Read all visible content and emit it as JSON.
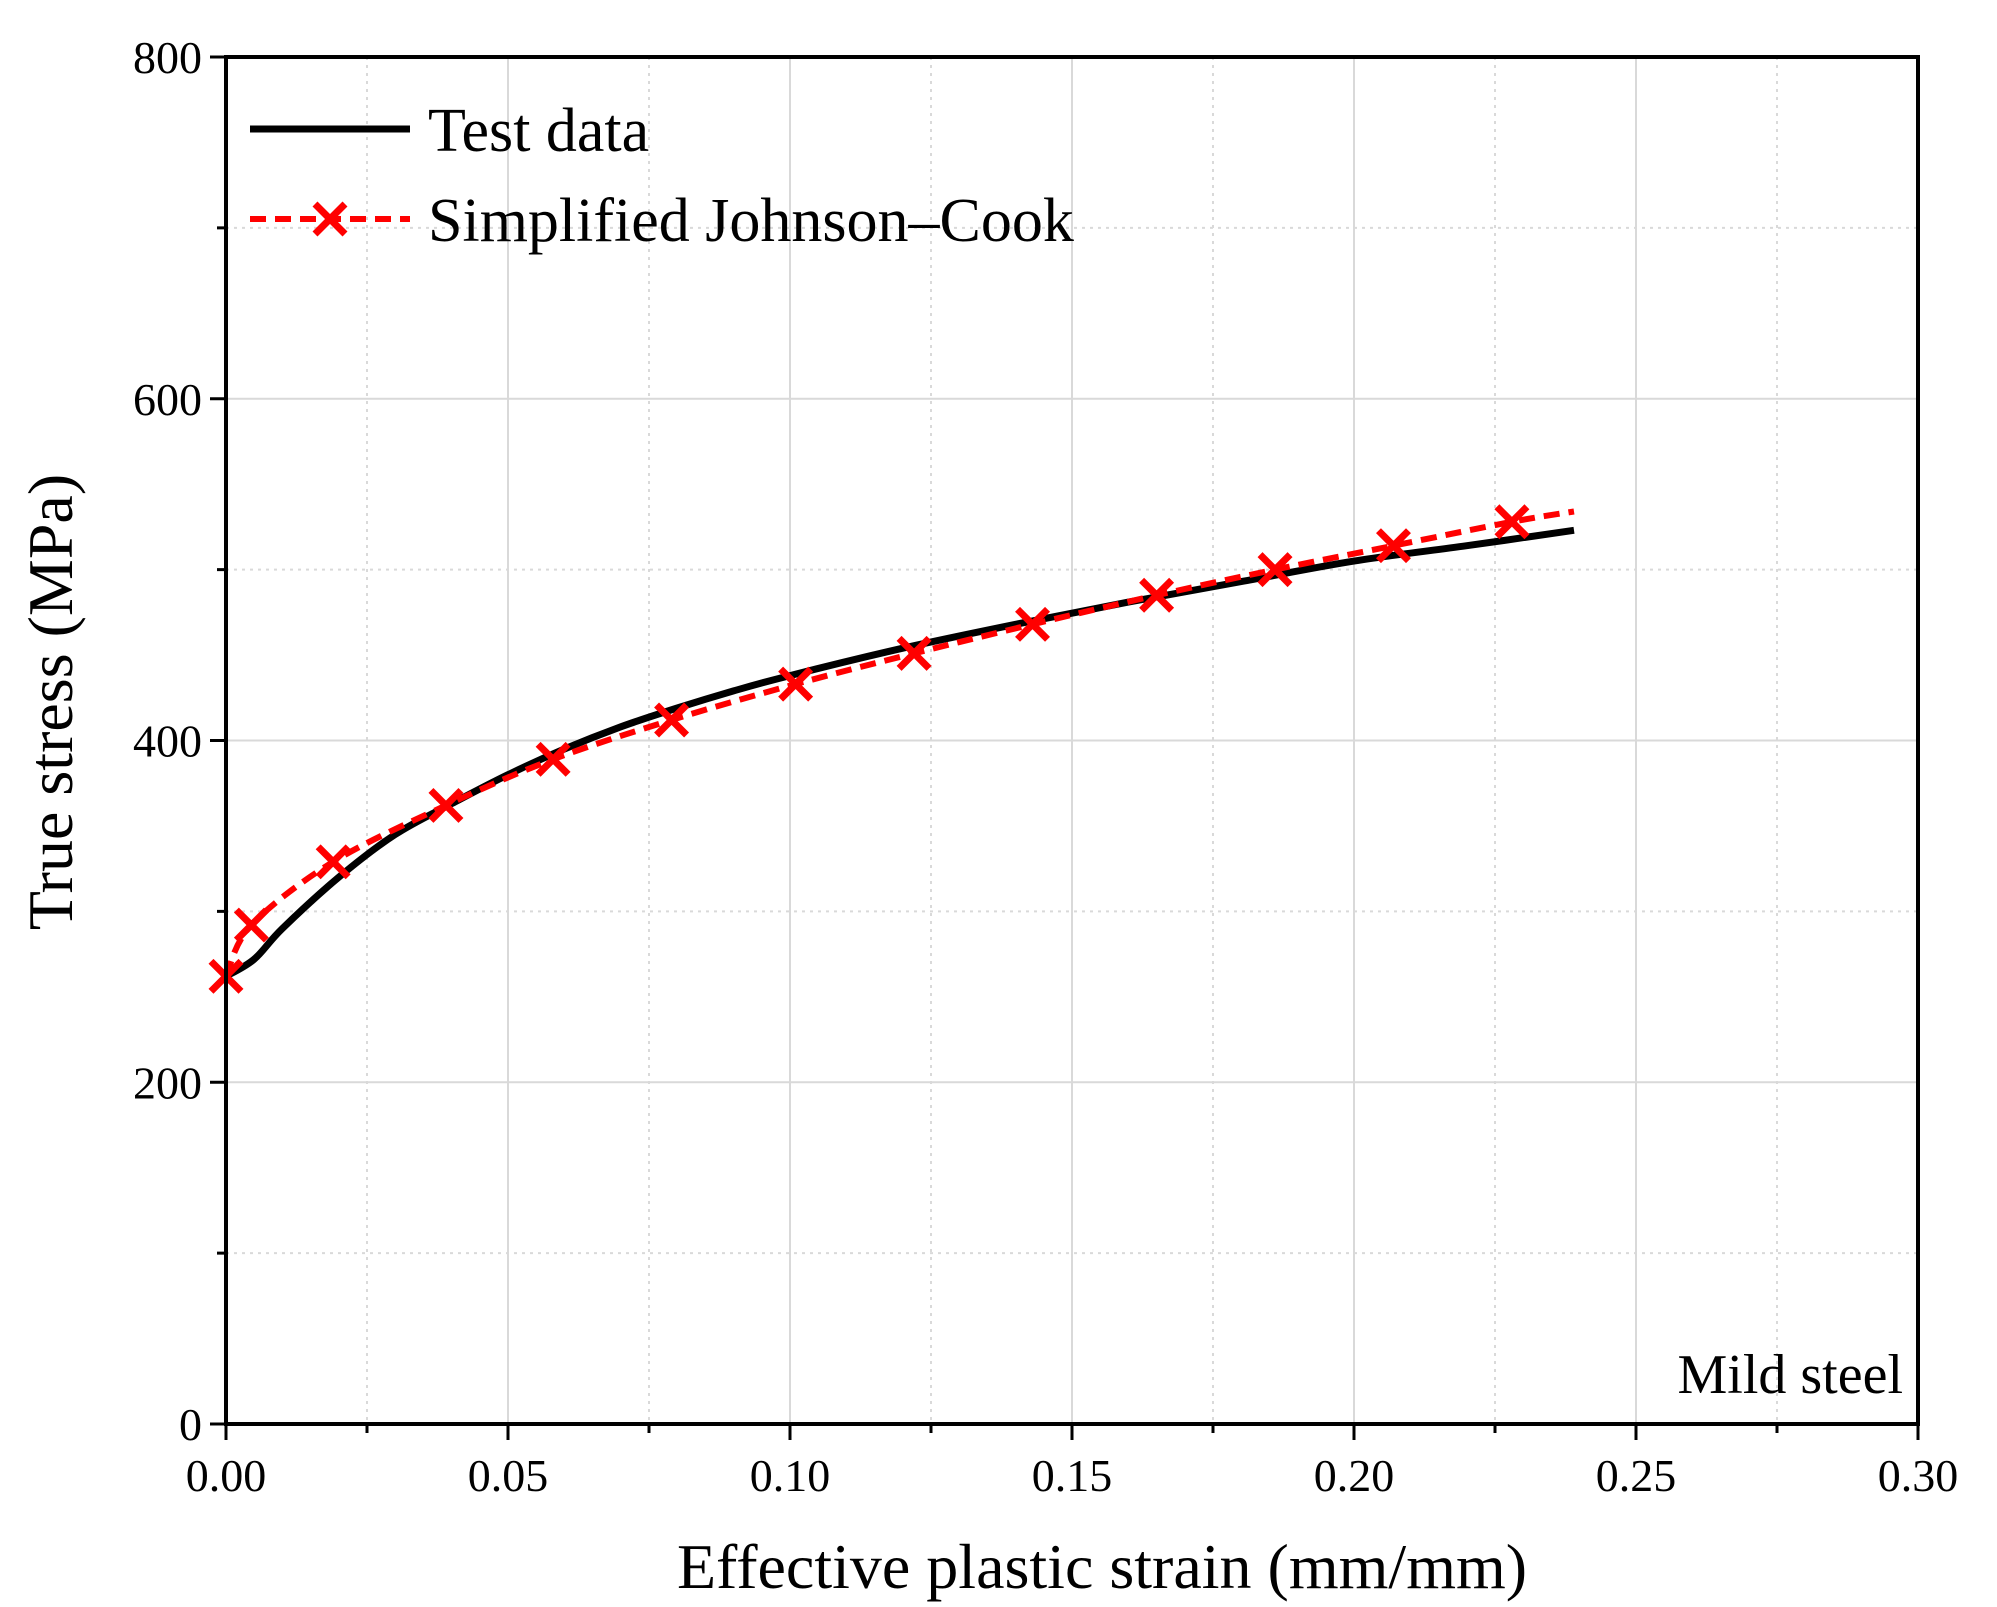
{
  "chart_data": {
    "type": "line",
    "title": "",
    "xlabel": "Effective plastic strain (mm/mm)",
    "ylabel": "True stress (MPa)",
    "xlim": [
      0,
      0.3
    ],
    "ylim": [
      0,
      800
    ],
    "x_ticks": [
      0,
      0.05,
      0.1,
      0.15,
      0.2,
      0.25,
      0.3
    ],
    "x_tick_labels": [
      "0.00",
      "0.05",
      "0.10",
      "0.15",
      "0.20",
      "0.25",
      "0.30"
    ],
    "y_ticks": [
      0,
      200,
      400,
      600,
      800
    ],
    "y_tick_labels": [
      "0",
      "200",
      "400",
      "600",
      "800"
    ],
    "grid": true,
    "annotation": "Mild steel",
    "legend_position": "top-left",
    "series": [
      {
        "name": "Test data",
        "color": "#000000",
        "style": "solid",
        "marker": "none",
        "x": [
          0,
          0.005,
          0.01,
          0.02,
          0.03,
          0.04,
          0.05,
          0.06,
          0.07,
          0.08,
          0.09,
          0.1,
          0.12,
          0.14,
          0.16,
          0.18,
          0.2,
          0.22,
          0.239
        ],
        "y": [
          262,
          272,
          290,
          320,
          345,
          363,
          380,
          395,
          408,
          419,
          429,
          438,
          454,
          468,
          481,
          493,
          505,
          514,
          523
        ]
      },
      {
        "name": "Simplified Johnson–Cook",
        "color": "#ff0000",
        "style": "dashed",
        "marker": "x",
        "x": [
          0,
          0.0045,
          0.019,
          0.039,
          0.058,
          0.079,
          0.101,
          0.122,
          0.143,
          0.165,
          0.186,
          0.207,
          0.228,
          0.239
        ],
        "y": [
          262,
          292,
          329,
          362,
          389,
          412,
          433,
          451,
          468,
          485,
          500,
          514,
          528,
          534
        ],
        "marker_x": [
          0,
          0.0045,
          0.019,
          0.039,
          0.058,
          0.079,
          0.101,
          0.122,
          0.143,
          0.165,
          0.186,
          0.207,
          0.228
        ]
      }
    ]
  },
  "colors": {
    "grid": "#d9d9d9",
    "axis": "#000000",
    "test": "#000000",
    "model": "#ff0000"
  }
}
